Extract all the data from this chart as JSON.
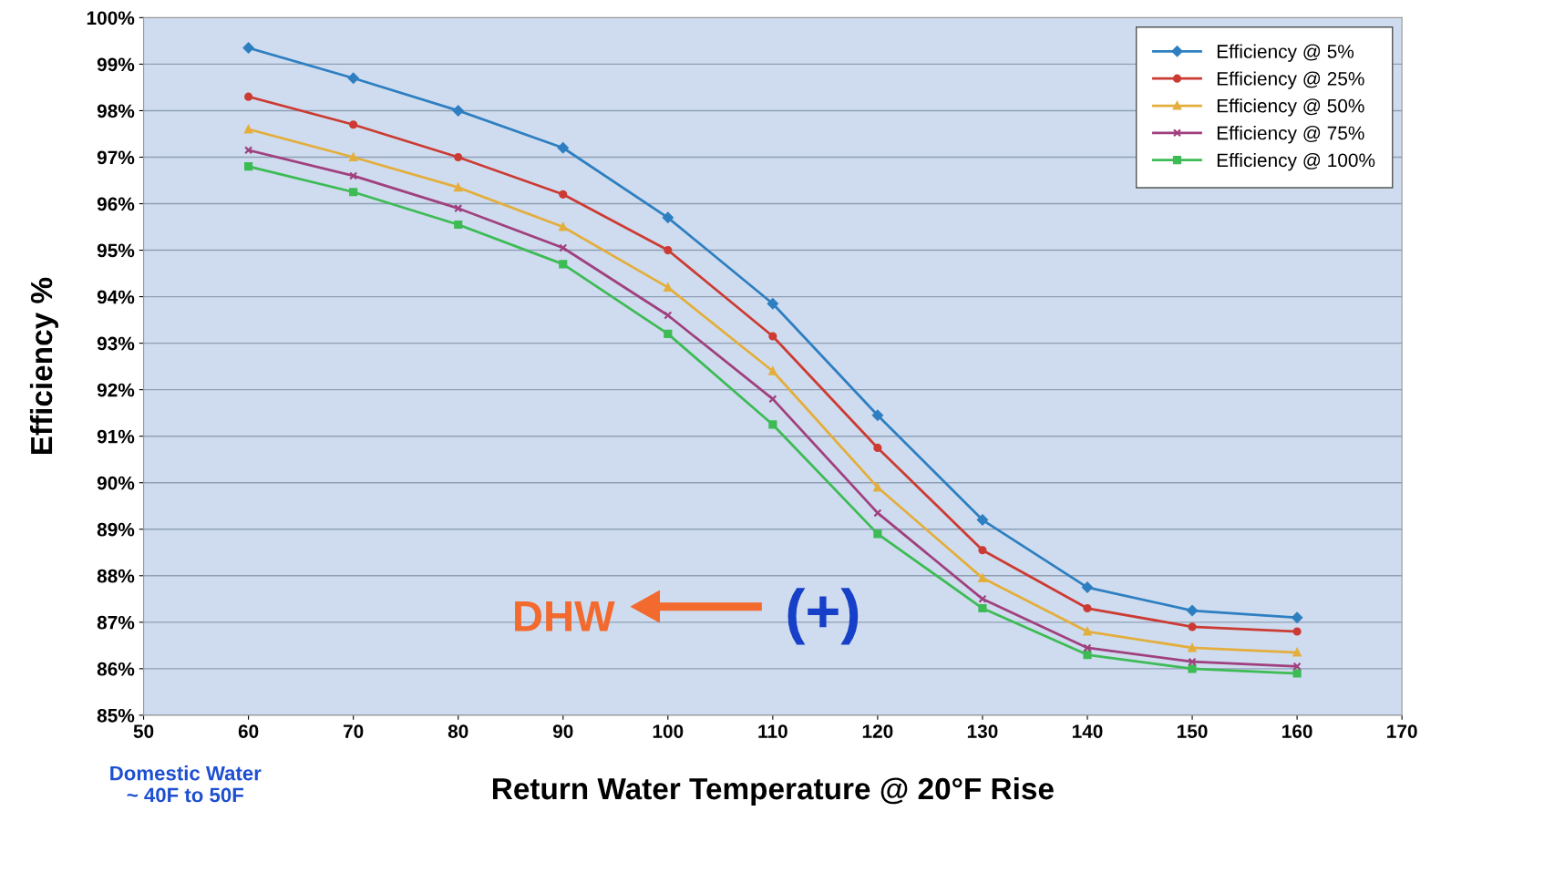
{
  "chart_data": {
    "type": "line",
    "xlabel": "Return Water Temperature @ 20°F Rise",
    "ylabel": "Efficiency %",
    "x": [
      60,
      70,
      80,
      90,
      100,
      110,
      120,
      130,
      140,
      150,
      160
    ],
    "series": [
      {
        "name": "Efficiency @ 5%",
        "color": "#2e7fc1",
        "marker": "diamond",
        "values": [
          99.35,
          98.7,
          98.0,
          97.2,
          95.7,
          93.85,
          91.45,
          89.2,
          87.75,
          87.25,
          87.1
        ]
      },
      {
        "name": "Efficiency @ 25%",
        "color": "#cc3b33",
        "marker": "circle",
        "values": [
          98.3,
          97.7,
          97.0,
          96.2,
          95.0,
          93.15,
          90.75,
          88.55,
          87.3,
          86.9,
          86.8
        ]
      },
      {
        "name": "Efficiency @ 50%",
        "color": "#e3ae3c",
        "marker": "triangle",
        "values": [
          97.6,
          97.0,
          96.35,
          95.5,
          94.2,
          92.4,
          89.9,
          87.95,
          86.8,
          86.45,
          86.35
        ]
      },
      {
        "name": "Efficiency @ 75%",
        "color": "#a0407f",
        "marker": "cross",
        "values": [
          97.15,
          96.6,
          95.9,
          95.05,
          93.6,
          91.8,
          89.35,
          87.5,
          86.45,
          86.15,
          86.05
        ]
      },
      {
        "name": "Efficiency @ 100%",
        "color": "#3dbb55",
        "marker": "square",
        "values": [
          96.8,
          96.25,
          95.55,
          94.7,
          93.2,
          91.25,
          88.9,
          87.3,
          86.3,
          86.0,
          85.9
        ]
      }
    ],
    "xlim": [
      50,
      170
    ],
    "xticks": [
      50,
      60,
      70,
      80,
      90,
      100,
      110,
      120,
      130,
      140,
      150,
      160,
      170
    ],
    "ylim": [
      85,
      100
    ],
    "yticks": [
      {
        "value": 85,
        "label": "85%"
      },
      {
        "value": 86,
        "label": "86%"
      },
      {
        "value": 87,
        "label": "87%"
      },
      {
        "value": 88,
        "label": "88%"
      },
      {
        "value": 89,
        "label": "89%"
      },
      {
        "value": 90,
        "label": "90%"
      },
      {
        "value": 91,
        "label": "91%"
      },
      {
        "value": 92,
        "label": "92%"
      },
      {
        "value": 93,
        "label": "93%"
      },
      {
        "value": 94,
        "label": "94%"
      },
      {
        "value": 95,
        "label": "95%"
      },
      {
        "value": 96,
        "label": "96%"
      },
      {
        "value": 97,
        "label": "97%"
      },
      {
        "value": 98,
        "label": "98%"
      },
      {
        "value": 99,
        "label": "99%"
      },
      {
        "value": 100,
        "label": "100%"
      }
    ],
    "grid": "y",
    "legend": "top right",
    "line_style": "solid",
    "annotations": [
      "Domestic Water\n~ 40F to 50F",
      "DHW",
      "(+)"
    ]
  }
}
